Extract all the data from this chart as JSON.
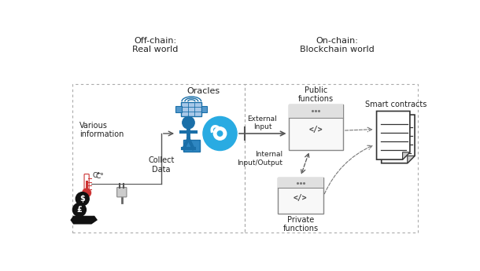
{
  "background_color": "#ffffff",
  "fig_width": 6.1,
  "fig_height": 3.45,
  "dpi": 100,
  "offchain_label": "Off-chain:\nReal world",
  "onchain_label": "On-chain:\nBlockchain world",
  "oracles_label": "Oracles",
  "various_info_label": "Various\ninformation",
  "collect_data_label": "Collect\nData",
  "external_input_label": "External\nInput",
  "internal_io_label": "Internal\nInput/Output",
  "public_functions_label": "Public\nfunctions",
  "private_functions_label": "Private\nfunctions",
  "smart_contracts_label": "Smart contracts",
  "text_color": "#222222",
  "border_color": "#aaaaaa",
  "arrow_color": "#555555",
  "oracle_blue": "#1a6fa8",
  "oracle_light_blue": "#29abe2",
  "code_box_border": "#888888",
  "doc_color": "#333333"
}
